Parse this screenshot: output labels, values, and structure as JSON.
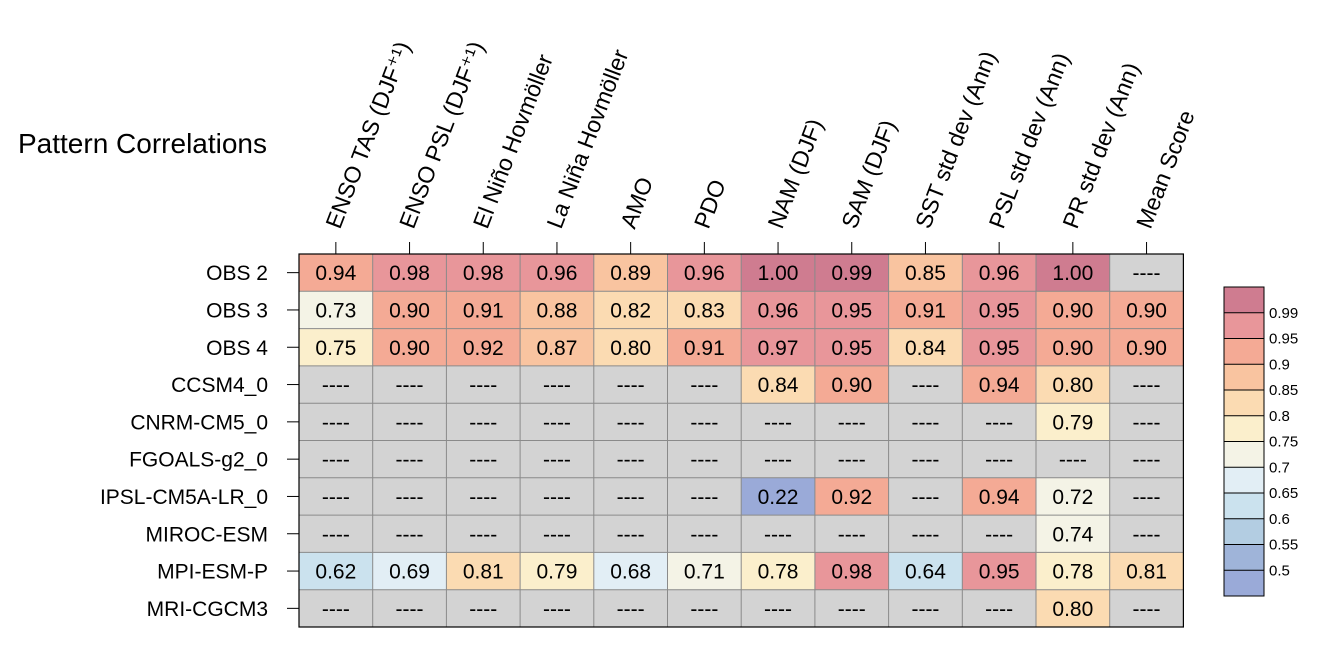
{
  "chart_data": {
    "type": "heatmap",
    "title": "Pattern Correlations",
    "columns": [
      "ENSO TAS (DJF⁺¹)",
      "ENSO PSL (DJF⁺¹)",
      "El Niño Hovmöller",
      "La Niña Hovmöller",
      "AMO",
      "PDO",
      "NAM (DJF)",
      "SAM (DJF)",
      "SST std dev (Ann)",
      "PSL std dev (Ann)",
      "PR std dev (Ann)",
      "Mean Score"
    ],
    "rows": [
      "OBS 2",
      "OBS 3",
      "OBS 4",
      "CCSM4_0",
      "CNRM-CM5_0",
      "FGOALS-g2_0",
      "IPSL-CM5A-LR_0",
      "MIROC-ESM",
      "MPI-ESM-P",
      "MRI-CGCM3"
    ],
    "values": [
      [
        "0.94",
        "0.98",
        "0.98",
        "0.96",
        "0.89",
        "0.96",
        "1.00",
        "0.99",
        "0.85",
        "0.96",
        "1.00",
        "----"
      ],
      [
        "0.73",
        "0.90",
        "0.91",
        "0.88",
        "0.82",
        "0.83",
        "0.96",
        "0.95",
        "0.91",
        "0.95",
        "0.90",
        "0.90"
      ],
      [
        "0.75",
        "0.90",
        "0.92",
        "0.87",
        "0.80",
        "0.91",
        "0.97",
        "0.95",
        "0.84",
        "0.95",
        "0.90",
        "0.90"
      ],
      [
        "----",
        "----",
        "----",
        "----",
        "----",
        "----",
        "0.84",
        "0.90",
        "----",
        "0.94",
        "0.80",
        "----"
      ],
      [
        "----",
        "----",
        "----",
        "----",
        "----",
        "----",
        "----",
        "----",
        "----",
        "----",
        "0.79",
        "----"
      ],
      [
        "----",
        "----",
        "----",
        "----",
        "----",
        "----",
        "----",
        "----",
        "----",
        "----",
        "----",
        "----"
      ],
      [
        "----",
        "----",
        "----",
        "----",
        "----",
        "----",
        "0.22",
        "0.92",
        "----",
        "0.94",
        "0.72",
        "----"
      ],
      [
        "----",
        "----",
        "----",
        "----",
        "----",
        "----",
        "----",
        "----",
        "----",
        "----",
        "0.74",
        "----"
      ],
      [
        "0.62",
        "0.69",
        "0.81",
        "0.79",
        "0.68",
        "0.71",
        "0.78",
        "0.98",
        "0.64",
        "0.95",
        "0.78",
        "0.81"
      ],
      [
        "----",
        "----",
        "----",
        "----",
        "----",
        "----",
        "----",
        "----",
        "----",
        "----",
        "0.80",
        "----"
      ]
    ],
    "missing_color": "#d3d3d3",
    "colorbar": {
      "ticks": [
        "0.99",
        "0.95",
        "0.9",
        "0.85",
        "0.8",
        "0.75",
        "0.7",
        "0.65",
        "0.6",
        "0.55",
        "0.5"
      ],
      "bins": [
        {
          "min": 0.99,
          "color": "#cf7c90"
        },
        {
          "min": 0.95,
          "color": "#e8969a"
        },
        {
          "min": 0.9,
          "color": "#f4aa95"
        },
        {
          "min": 0.85,
          "color": "#f9c4a0"
        },
        {
          "min": 0.8,
          "color": "#fbdbb2"
        },
        {
          "min": 0.75,
          "color": "#fbefcc"
        },
        {
          "min": 0.7,
          "color": "#f4f3e6"
        },
        {
          "min": 0.65,
          "color": "#e2eef5"
        },
        {
          "min": 0.6,
          "color": "#cbe2ee"
        },
        {
          "min": 0.55,
          "color": "#b3cde2"
        },
        {
          "min": 0.5,
          "color": "#9fb4d9"
        },
        {
          "min": -1.0,
          "color": "#9aaad8"
        }
      ]
    }
  }
}
